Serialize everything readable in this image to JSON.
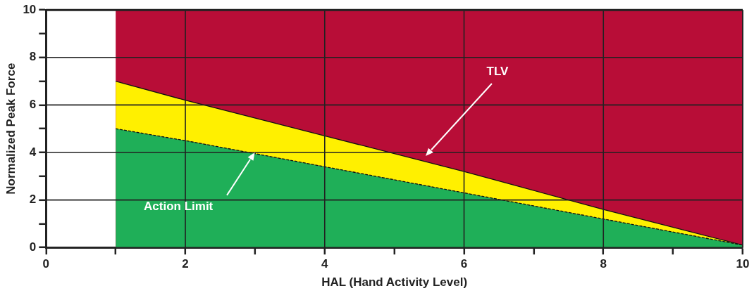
{
  "chart_data": {
    "type": "area",
    "xlabel": "HAL (Hand Activity Level)",
    "ylabel": "Normalized Peak Force",
    "series": [
      {
        "color": "#1faf58",
        "line_style": "dashed",
        "x": [
          1,
          2,
          4,
          6,
          8,
          10
        ],
        "values": [
          5,
          4.5,
          3.4,
          2.3,
          1.2,
          0.1
        ]
      },
      {
        "color": "#fff000",
        "line_style": "solid",
        "x": [
          1,
          2,
          4,
          6,
          8,
          10
        ],
        "values": [
          7,
          6.2,
          4.7,
          3.2,
          1.6,
          0.1
        ]
      }
    ],
    "bands": [
      {
        "axis": "x",
        "from": 1,
        "to": 10,
        "color": "#b80d37"
      }
    ],
    "annotations": [
      "TLV",
      "Action Limit"
    ],
    "xlim": [
      0,
      10
    ],
    "ylim": [
      0,
      10
    ],
    "xticks": [
      0,
      {
        "value": 1,
        "label": null
      },
      2,
      {
        "value": 3,
        "label": null
      },
      4,
      {
        "value": 5,
        "label": null
      },
      6,
      {
        "value": 7,
        "label": null
      },
      8,
      {
        "value": 9,
        "label": null
      },
      10
    ],
    "yticks": [
      0,
      {
        "value": 1,
        "label": null
      },
      2,
      {
        "value": 3,
        "label": null
      },
      4,
      {
        "value": 5,
        "label": null
      },
      6,
      {
        "value": 7,
        "label": null
      },
      8,
      {
        "value": 9,
        "label": null
      },
      10
    ],
    "grid": true,
    "legend": false,
    "marker": "none"
  }
}
